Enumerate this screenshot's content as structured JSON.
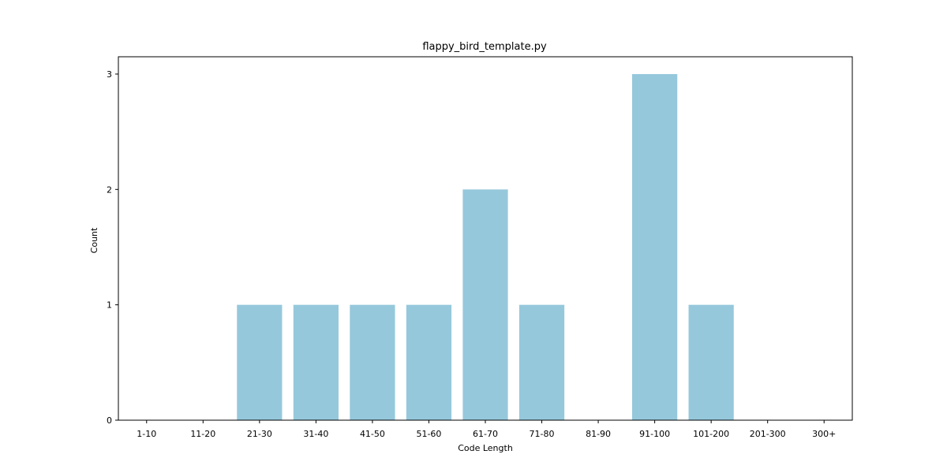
{
  "chart_data": {
    "type": "bar",
    "title": "flappy_bird_template.py",
    "xlabel": "Code Length",
    "ylabel": "Count",
    "categories": [
      "1-10",
      "11-20",
      "21-30",
      "31-40",
      "41-50",
      "51-60",
      "61-70",
      "71-80",
      "81-90",
      "91-100",
      "101-200",
      "201-300",
      "300+"
    ],
    "values": [
      0,
      0,
      1,
      1,
      1,
      1,
      2,
      1,
      0,
      3,
      1,
      0,
      0
    ],
    "ylim": [
      0,
      3.15
    ],
    "yticks": [
      0,
      1,
      2,
      3
    ],
    "bar_color": "#96c8dc",
    "grid": false,
    "legend": "none"
  }
}
